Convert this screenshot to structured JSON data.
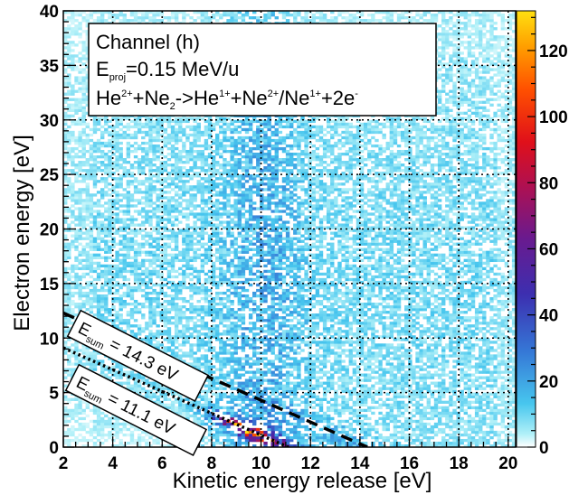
{
  "chart_data": {
    "type": "heatmap",
    "title": "",
    "xlabel": "Kinetic energy release [eV]",
    "ylabel": "Electron energy [eV]",
    "xlim": [
      2,
      20.3
    ],
    "ylim": [
      0,
      40
    ],
    "zlim": [
      0,
      132
    ],
    "x_ticks": [
      2,
      4,
      6,
      8,
      10,
      12,
      14,
      16,
      18,
      20
    ],
    "y_ticks": [
      0,
      5,
      10,
      15,
      20,
      25,
      30,
      35,
      40
    ],
    "z_ticks": [
      0,
      20,
      40,
      60,
      80,
      100,
      120
    ],
    "grid": true,
    "colormap": "ROOT rainbow (white background, cyan -> blue -> purple -> red -> orange -> yellow)",
    "legend": {
      "line1": "Channel (h)",
      "line2_base": "E",
      "line2_sub": "proj",
      "line2_rest": "=0.15 MeV/u",
      "line3": [
        {
          "t": "He",
          "k": "n"
        },
        {
          "t": "2+",
          "k": "sup"
        },
        {
          "t": "+Ne",
          "k": "n"
        },
        {
          "t": "2",
          "k": "sub"
        },
        {
          "t": "->He",
          "k": "n"
        },
        {
          "t": "1+",
          "k": "sup"
        },
        {
          "t": "+Ne",
          "k": "n"
        },
        {
          "t": "2+",
          "k": "sup"
        },
        {
          "t": "/Ne",
          "k": "n"
        },
        {
          "t": "1+",
          "k": "sup"
        },
        {
          "t": "+2e",
          "k": "n"
        },
        {
          "t": "-",
          "k": "sup"
        }
      ]
    },
    "annotations": [
      {
        "base": "E",
        "sub": "sum",
        "rest": " = 14.3 eV",
        "line_style": "dashed",
        "sum_energy": 14.3
      },
      {
        "base": "E",
        "sub": "sum",
        "rest": " = 11.1 eV",
        "line_style": "dotted",
        "sum_energy": 11.1
      }
    ],
    "features": {
      "background_level": 12,
      "vertical_band_x": [
        8.5,
        11.8
      ],
      "low_energy_ridge": "counts peak near x=9, y=1, along Ex+Ee = 11.1 eV, max approx 130 counts"
    }
  }
}
